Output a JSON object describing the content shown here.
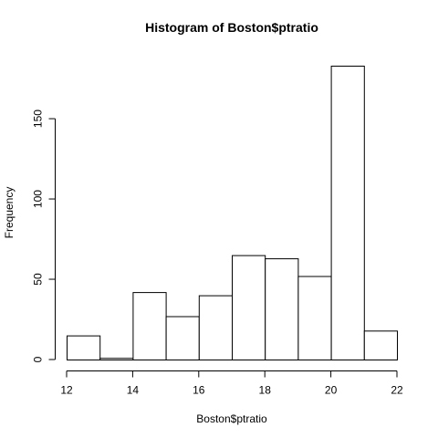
{
  "chart_data": {
    "type": "bar",
    "subtype": "histogram",
    "title": "Histogram of Boston$ptratio",
    "xlabel": "Boston$ptratio",
    "ylabel": "Frequency",
    "bins": [
      {
        "from": 12,
        "to": 13,
        "count": 15
      },
      {
        "from": 13,
        "to": 14,
        "count": 1
      },
      {
        "from": 14,
        "to": 15,
        "count": 42
      },
      {
        "from": 15,
        "to": 16,
        "count": 27
      },
      {
        "from": 16,
        "to": 17,
        "count": 40
      },
      {
        "from": 17,
        "to": 18,
        "count": 65
      },
      {
        "from": 18,
        "to": 19,
        "count": 63
      },
      {
        "from": 19,
        "to": 20,
        "count": 52
      },
      {
        "from": 20,
        "to": 21,
        "count": 183
      },
      {
        "from": 21,
        "to": 22,
        "count": 18
      }
    ],
    "xlim": [
      12,
      22
    ],
    "ylim": [
      0,
      183
    ],
    "xticks": [
      "12",
      "14",
      "16",
      "18",
      "20",
      "22"
    ],
    "yticks": [
      "0",
      "50",
      "100",
      "150"
    ],
    "bar_fill": "#ffffff",
    "bar_stroke": "#000000",
    "grid": false,
    "legend": "none"
  }
}
